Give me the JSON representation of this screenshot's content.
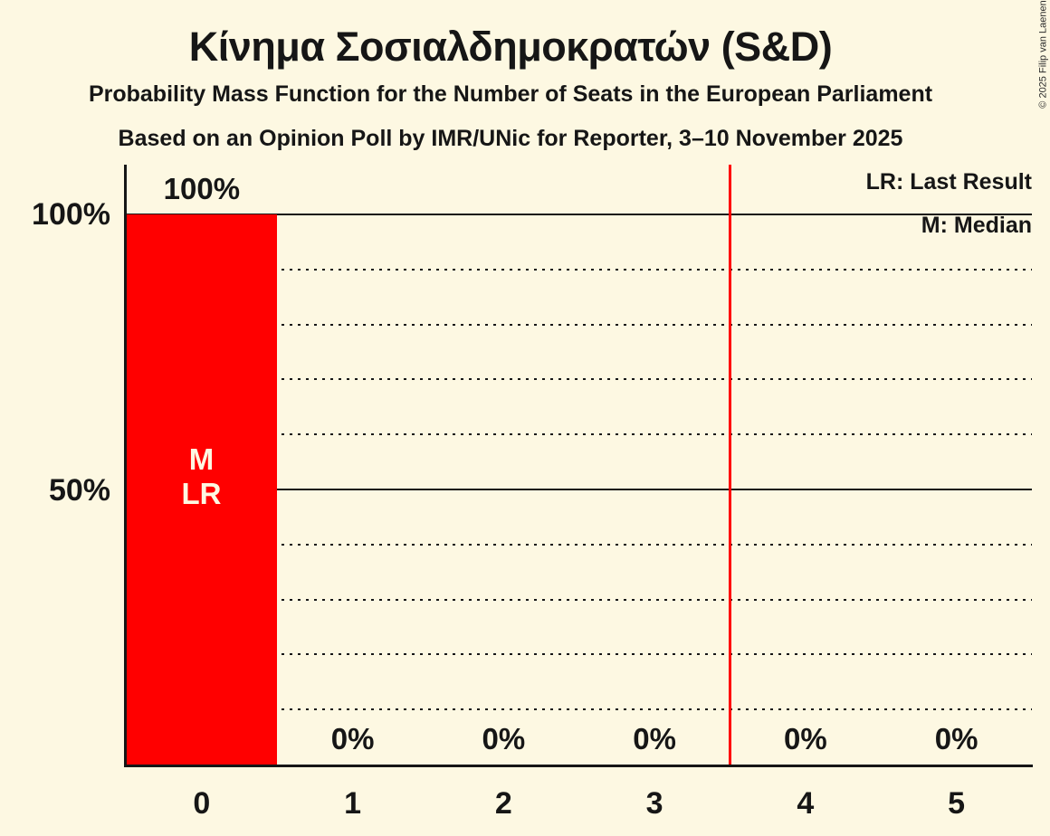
{
  "title": "Κίνημα Σοσιαλδημοκρατών (S&D)",
  "subtitles": {
    "line1": "Probability Mass Function for the Number of Seats in the European Parliament",
    "line2": "Based on an Opinion Poll by IMR/UNic for Reporter, 3–10 November 2025"
  },
  "copyright": "© 2025 Filip van Laenen",
  "legend": {
    "last_result": "LR: Last Result",
    "median": "M: Median"
  },
  "y_axis": {
    "label_100": "100%",
    "label_50": "50%"
  },
  "chart_data": {
    "type": "bar",
    "title": "Κίνημα Σοσιαλδημοκρατών (S&D)",
    "categories": [
      "0",
      "1",
      "2",
      "3",
      "4",
      "5"
    ],
    "values": [
      100,
      0,
      0,
      0,
      0,
      0
    ],
    "value_labels": [
      "100%",
      "0%",
      "0%",
      "0%",
      "0%",
      "0%"
    ],
    "ylim": [
      0,
      100
    ],
    "y_tick_labels": [
      "100%",
      "50%"
    ],
    "gridlines": {
      "solid_pct": [
        100,
        50
      ],
      "dotted_pct": [
        90,
        80,
        70,
        60,
        40,
        30,
        20,
        10
      ]
    },
    "median_seat": 0,
    "last_result_seat": 0,
    "bar_annotation": {
      "category": "0",
      "lines": [
        "M",
        "LR"
      ]
    },
    "last_result_vline_x": 3.5,
    "legend_position": "top-right",
    "colors": {
      "bar": "#ff0000",
      "last_result_line": "#ff0000",
      "background": "#fdf8e2",
      "text": "#161616",
      "bar_annotation_text": "#fdf8e2"
    }
  }
}
